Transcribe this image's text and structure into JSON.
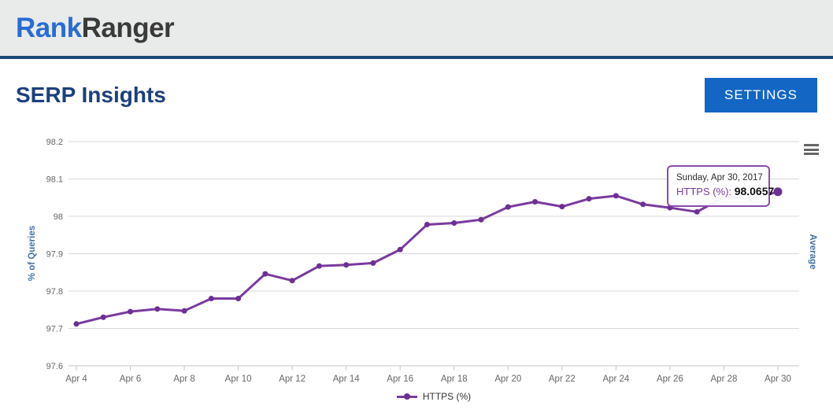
{
  "header": {
    "logo_blue": "Rank",
    "logo_dark": "Ranger"
  },
  "page": {
    "title": "SERP Insights",
    "settings_label": "SETTINGS"
  },
  "tooltip": {
    "date": "Sunday, Apr 30, 2017",
    "series_label": "HTTPS (%):",
    "value": "98.0657"
  },
  "legend": {
    "label": "HTTPS (%)"
  },
  "icons": {
    "chart_menu": "hamburger-menu"
  },
  "colors": {
    "series_line": "#7a3b9d",
    "series_marker": "#6c2f94",
    "axis_label": "#666666",
    "axis_title_blue": "#4572a7",
    "gridline": "#d8d8d8",
    "axis_line": "#c6c6c6",
    "accent_button": "#1366c4",
    "title_blue": "#1c3f7e",
    "logo_blue": "#2a6cd4",
    "tooltip_border": "#8a4cae"
  },
  "chart_data": {
    "type": "line",
    "title": "",
    "categories": [
      "Apr 4",
      "Apr 5",
      "Apr 6",
      "Apr 7",
      "Apr 8",
      "Apr 9",
      "Apr 10",
      "Apr 11",
      "Apr 12",
      "Apr 13",
      "Apr 14",
      "Apr 15",
      "Apr 16",
      "Apr 17",
      "Apr 18",
      "Apr 19",
      "Apr 20",
      "Apr 21",
      "Apr 22",
      "Apr 23",
      "Apr 24",
      "Apr 25",
      "Apr 26",
      "Apr 27",
      "Apr 28",
      "Apr 29",
      "Apr 30"
    ],
    "series": [
      {
        "name": "HTTPS (%)",
        "values": [
          97.712,
          97.73,
          97.745,
          97.752,
          97.747,
          97.78,
          97.78,
          97.846,
          97.828,
          97.867,
          97.87,
          97.875,
          97.911,
          97.978,
          97.982,
          97.991,
          98.025,
          98.039,
          98.026,
          98.047,
          98.055,
          98.032,
          98.023,
          98.012,
          98.051,
          98.047,
          98.0657
        ]
      }
    ],
    "xlabel": "",
    "ylabel": "% of Queries",
    "right_axis_label": "Average",
    "ylim": [
      97.6,
      98.2
    ],
    "yticks": [
      97.6,
      97.7,
      97.8,
      97.9,
      98,
      98.1,
      98.2
    ],
    "ytick_labels": [
      "97.6",
      "97.7",
      "97.8",
      "97.9",
      "98",
      "98.1",
      "98.2"
    ],
    "xtick_every": 2,
    "grid": true,
    "legend_position": "bottom",
    "highlighted_point_index": 26
  }
}
